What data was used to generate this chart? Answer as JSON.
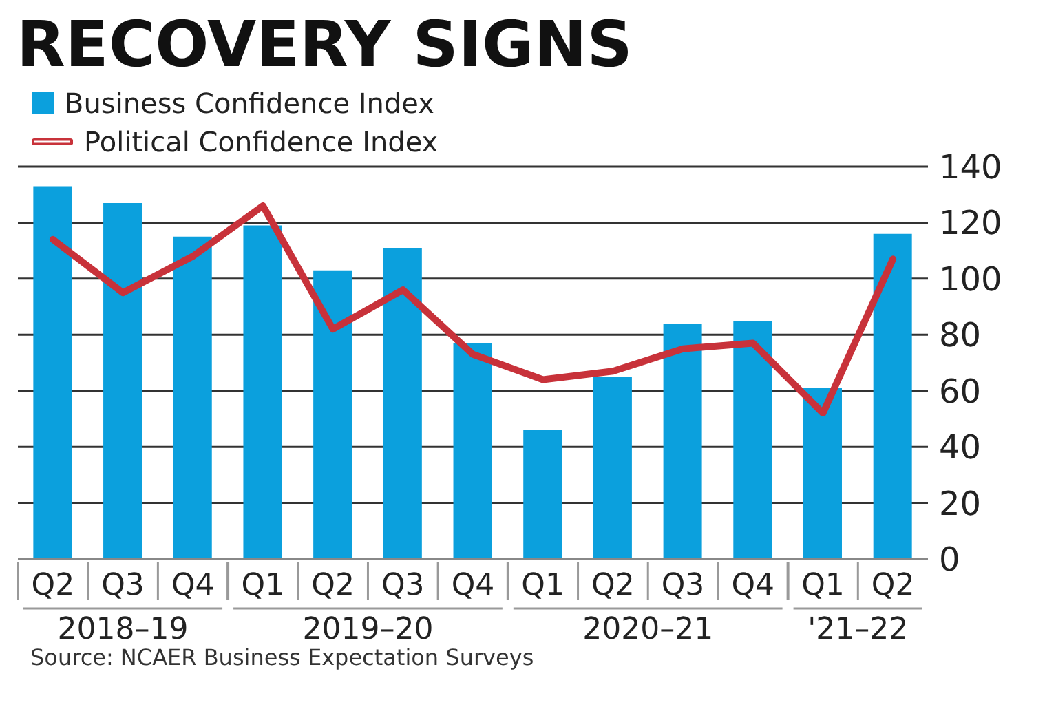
{
  "chart_data": {
    "type": "bar",
    "title": "RECOVERY SIGNS",
    "categories": [
      "Q2",
      "Q3",
      "Q4",
      "Q1",
      "Q2",
      "Q3",
      "Q4",
      "Q1",
      "Q2",
      "Q3",
      "Q4",
      "Q1",
      "Q2"
    ],
    "series": [
      {
        "name": "Business Confidence Index",
        "color": "#0ba0dd",
        "values": [
          133,
          127,
          115,
          119,
          103,
          111,
          77,
          46,
          65,
          84,
          85,
          61,
          116
        ]
      },
      {
        "name": "Political Confidence Index",
        "type": "line",
        "color": "#c8323a",
        "values": [
          114,
          95,
          108,
          126,
          82,
          96,
          73,
          64,
          67,
          75,
          77,
          52,
          107
        ]
      }
    ],
    "annotations": [
      "2018–19",
      "2019–20",
      "2020–21",
      "'21–22",
      "Source: NCAER Business Expectation Surveys"
    ],
    "ylim": [
      0,
      140
    ],
    "yticks": [
      0,
      20,
      40,
      60,
      80,
      100,
      120,
      140
    ],
    "grid": "y",
    "legend": "top left",
    "marker": "none",
    "line_style": "solid"
  }
}
